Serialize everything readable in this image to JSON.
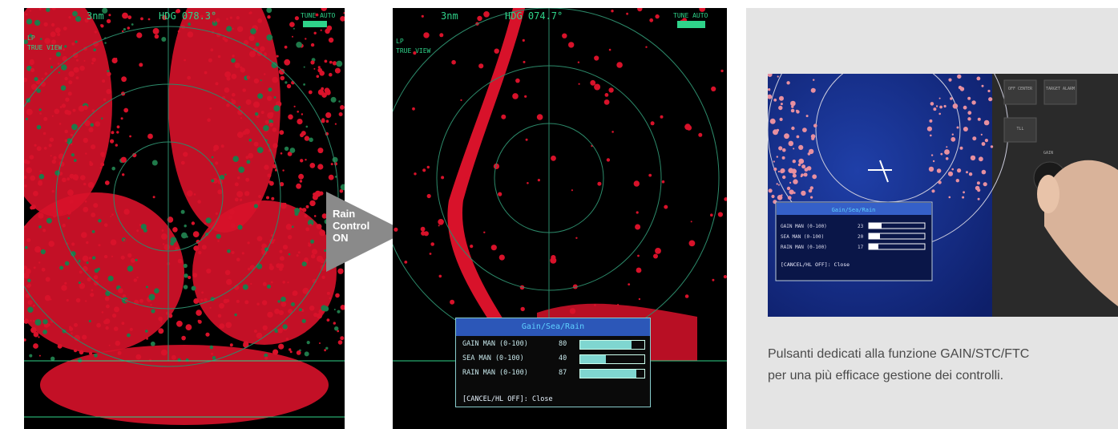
{
  "arrow": {
    "line1": "Rain",
    "line2": "Control",
    "line3": "ON"
  },
  "caption": {
    "line1": "Pulsanti dedicati alla funzione GAIN/STC/FTC",
    "line2": "per una più efficace gestione dei controlli."
  },
  "radar_after": {
    "range": "3nm",
    "heading": "HDG 074.7°",
    "tune": "TUNE AUTO",
    "mode1": "LP",
    "mode2": "TRUE VIEW",
    "menu": {
      "title": "Gain/Sea/Rain",
      "rows": [
        {
          "label": "GAIN MAN  (0-100)",
          "value": "80",
          "level": 0.8
        },
        {
          "label": "SEA  MAN  (0-100)",
          "value": "40",
          "level": 0.4
        },
        {
          "label": "RAIN MAN  (0-100)",
          "value": "87",
          "level": 0.87
        }
      ],
      "footer": "[CANCEL/HL OFF]: Close"
    }
  },
  "radar_before": {
    "range": "3nm",
    "heading": "HDG 078.3°",
    "tune": "TUNE AUTO",
    "mode1": "LP",
    "mode2": "TRUE VIEW"
  },
  "photo": {
    "keys": [
      "OFF CENTER",
      "TARGET ALARM",
      "TLL",
      "GAIN"
    ],
    "menu": {
      "title": "Gain/Sea/Rain",
      "rows": [
        {
          "label": "GAIN MAN  (0-100)",
          "value": "23",
          "level": 0.23
        },
        {
          "label": "SEA  MAN  (0-100)",
          "value": "20",
          "level": 0.2
        },
        {
          "label": "RAIN MAN  (0-100)",
          "value": "17",
          "level": 0.17
        }
      ],
      "footer": "[CANCEL/HL OFF]: Close"
    }
  },
  "colors": {
    "echo": "#d8122a",
    "ring": "#2c8a6a",
    "panel_bg": "#e4e4e4",
    "arrow": "#8a8a8a",
    "menu_title_bg": "#2c57b8"
  }
}
